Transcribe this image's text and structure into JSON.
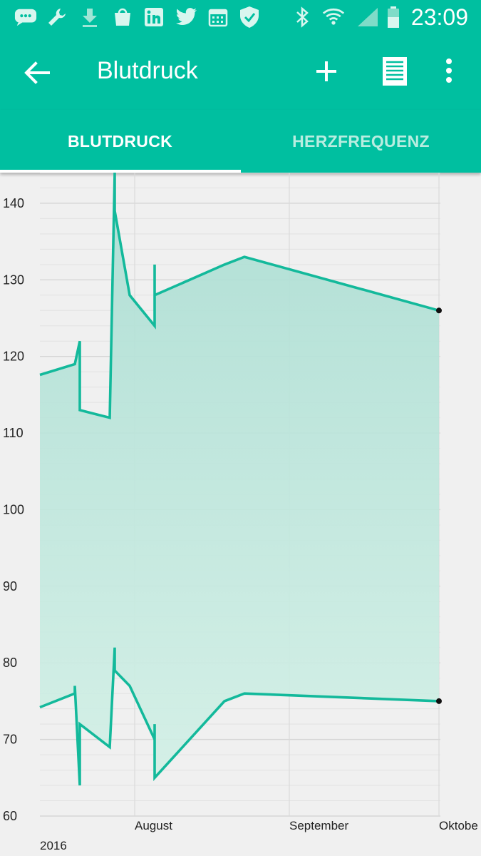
{
  "status_bar": {
    "time": "23:09",
    "icons": [
      "chat-bubble-icon",
      "wrench-icon",
      "download-icon",
      "galaxy-apps-icon",
      "linkedin-icon",
      "twitter-icon",
      "calendar-icon",
      "shield-icon",
      "bluetooth-icon",
      "wifi-icon",
      "signal-icon",
      "battery-icon"
    ]
  },
  "app_bar": {
    "title": "Blutdruck",
    "back_icon": "arrow-back-icon",
    "add_icon": "plus-icon",
    "list_icon": "list-icon",
    "more_icon": "more-vert-icon"
  },
  "tabs": [
    {
      "label": "BLUTDRUCK",
      "active": true
    },
    {
      "label": "HERZFREQUENZ",
      "active": false
    }
  ],
  "colors": {
    "primary": "#00bfa0",
    "line": "#13b99b",
    "fill": "#c0e8dd",
    "tab_inactive": "#b8ede0"
  },
  "chart_data": {
    "type": "area",
    "ylim": [
      60,
      144
    ],
    "y_ticks": [
      60,
      70,
      80,
      90,
      100,
      110,
      120,
      130,
      140
    ],
    "x_tick_labels": [
      "August",
      "September",
      "Oktobe"
    ],
    "year_label": "2016",
    "series": [
      {
        "values": [
          [
            "2016-07-13",
            117.6
          ],
          [
            "2016-07-20",
            119
          ],
          [
            "2016-07-21",
            122
          ],
          [
            "2016-07-21",
            113
          ],
          [
            "2016-07-27",
            112
          ],
          [
            "2016-07-28",
            144
          ],
          [
            "2016-07-28",
            139
          ],
          [
            "2016-07-31",
            128
          ],
          [
            "2016-08-05",
            124
          ],
          [
            "2016-08-05",
            132
          ],
          [
            "2016-08-05",
            128
          ],
          [
            "2016-08-19",
            132
          ],
          [
            "2016-08-23",
            133
          ],
          [
            "2016-10-01",
            126
          ]
        ]
      },
      {
        "values": [
          [
            "2016-07-13",
            74.2
          ],
          [
            "2016-07-20",
            76
          ],
          [
            "2016-07-20",
            77
          ],
          [
            "2016-07-21",
            64
          ],
          [
            "2016-07-21",
            72
          ],
          [
            "2016-07-27",
            69
          ],
          [
            "2016-07-28",
            82
          ],
          [
            "2016-07-28",
            79
          ],
          [
            "2016-07-31",
            77
          ],
          [
            "2016-08-05",
            70
          ],
          [
            "2016-08-05",
            72
          ],
          [
            "2016-08-05",
            65
          ],
          [
            "2016-08-19",
            75
          ],
          [
            "2016-08-23",
            76
          ],
          [
            "2016-10-01",
            75
          ]
        ]
      }
    ]
  }
}
